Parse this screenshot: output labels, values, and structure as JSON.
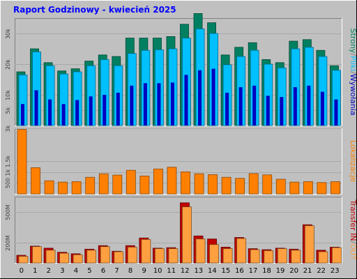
{
  "title": "Raport Godzinowy -  kwiecień 2025",
  "colors": {
    "background": "#c0c0c0",
    "title": "#0000ff",
    "grid": "#808080",
    "strony": "#008060",
    "pliki": "#00c0ff",
    "wywolania": "#0000c0",
    "lokalizacje": "#ff8000",
    "transfer_in": "#c00000",
    "transfer_out": "#ffa040"
  },
  "chart_data": [
    {
      "type": "bar",
      "categories": [
        "0",
        "1",
        "2",
        "3",
        "4",
        "5",
        "6",
        "7",
        "8",
        "9",
        "10",
        "11",
        "12",
        "13",
        "14",
        "15",
        "16",
        "17",
        "18",
        "19",
        "20",
        "21",
        "22",
        "23"
      ],
      "ylim": [
        0,
        35000
      ],
      "yticks": [
        {
          "value": 5000,
          "label": "5k"
        },
        {
          "value": 10000,
          "label": "10k"
        },
        {
          "value": 20000,
          "label": "20k"
        },
        {
          "value": 30000,
          "label": "30k"
        }
      ],
      "legend_parts": [
        {
          "text": "Strony",
          "color": "#008060"
        },
        {
          "text": "/",
          "color": "#808080"
        },
        {
          "text": "Pliki",
          "color": "#00c0ff"
        },
        {
          "text": "/",
          "color": "#808080"
        },
        {
          "text": "Wywołania",
          "color": "#0000c0"
        }
      ],
      "series": [
        {
          "name": "Wywołania",
          "values": [
            17500,
            25000,
            20500,
            17800,
            18500,
            21000,
            23000,
            22500,
            28500,
            28500,
            28500,
            29000,
            33000,
            36500,
            33500,
            23000,
            25500,
            27000,
            21500,
            20500,
            27500,
            28000,
            24500,
            19500
          ]
        },
        {
          "name": "Pliki",
          "values": [
            16500,
            24000,
            19500,
            16800,
            17500,
            19500,
            21500,
            19500,
            23500,
            24500,
            24700,
            25000,
            28500,
            31500,
            30000,
            19800,
            22500,
            24500,
            20000,
            18800,
            25000,
            25500,
            22500,
            18000
          ]
        },
        {
          "name": "Strony",
          "values": [
            7000,
            11500,
            8500,
            7000,
            8300,
            9500,
            10000,
            10700,
            13000,
            13800,
            13800,
            14000,
            16500,
            18000,
            18500,
            10700,
            12500,
            13000,
            9700,
            9300,
            12500,
            13000,
            11000,
            8500
          ]
        }
      ]
    },
    {
      "type": "bar",
      "categories": [
        "0",
        "1",
        "2",
        "3",
        "4",
        "5",
        "6",
        "7",
        "8",
        "9",
        "10",
        "11",
        "12",
        "13",
        "14",
        "15",
        "16",
        "17",
        "18",
        "19",
        "20",
        "21",
        "22",
        "23"
      ],
      "ylim": [
        0,
        3000
      ],
      "yticks": [
        {
          "value": 500,
          "label": "500"
        },
        {
          "value": 1000,
          "label": "1k"
        },
        {
          "value": 1500,
          "label": "1.5k"
        },
        {
          "value": 3000,
          "label": "3k"
        }
      ],
      "legend_parts": [
        {
          "text": "Lokalizacje",
          "color": "#ff8000"
        }
      ],
      "series": [
        {
          "name": "Lokalizacje",
          "values": [
            2950,
            1200,
            600,
            540,
            560,
            760,
            920,
            860,
            1080,
            820,
            1140,
            1220,
            1010,
            920,
            880,
            760,
            710,
            930,
            870,
            670,
            540,
            560,
            520,
            560
          ]
        }
      ]
    },
    {
      "type": "bar",
      "categories": [
        "0",
        "1",
        "2",
        "3",
        "4",
        "5",
        "6",
        "7",
        "8",
        "9",
        "10",
        "11",
        "12",
        "13",
        "14",
        "15",
        "16",
        "17",
        "18",
        "19",
        "20",
        "21",
        "22",
        "23"
      ],
      "ylim": [
        0,
        650
      ],
      "yticks": [
        {
          "value": 200,
          "label": "200M"
        },
        {
          "value": 500,
          "label": "500M"
        }
      ],
      "xlabels": [
        "0",
        "1",
        "2",
        "3",
        "4",
        "5",
        "6",
        "7",
        "8",
        "9",
        "10",
        "11",
        "12",
        "13",
        "14",
        "15",
        "16",
        "17",
        "18",
        "19",
        "20",
        "21",
        "22",
        "23"
      ],
      "legend_parts": [
        {
          "text": "Transfer",
          "color": "#c00000"
        },
        {
          "text": " IN",
          "color": "#c00000"
        },
        {
          "text": "/",
          "color": "#808080"
        },
        {
          "text": "OUT",
          "color": "#ffa040"
        }
      ],
      "series": [
        {
          "name": "IN",
          "values": [
            75,
            165,
            145,
            105,
            90,
            135,
            170,
            115,
            170,
            245,
            145,
            150,
            590,
            265,
            235,
            155,
            250,
            140,
            130,
            145,
            135,
            375,
            125,
            155
          ]
        },
        {
          "name": "OUT",
          "values": [
            65,
            160,
            125,
            95,
            80,
            125,
            160,
            110,
            155,
            230,
            140,
            140,
            550,
            235,
            180,
            140,
            240,
            130,
            120,
            140,
            125,
            365,
            110,
            150
          ]
        }
      ]
    }
  ]
}
